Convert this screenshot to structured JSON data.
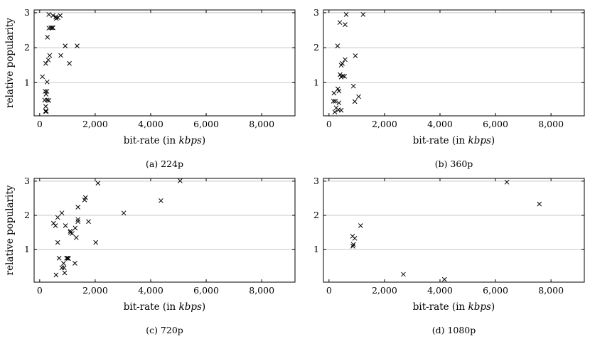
{
  "chart_data": [
    {
      "type": "scatter",
      "caption": "(a) 224p",
      "xlabel_prefix": "bit-rate (in ",
      "xlabel_unit": "kbps",
      "xlabel_suffix": ")",
      "ylabel": "relative popularity",
      "xlim": [
        -200,
        9200
      ],
      "ylim": [
        0.05,
        3.08
      ],
      "xticks": [
        0,
        2000,
        4000,
        6000,
        8000
      ],
      "xtick_labels": [
        "0",
        "2,000",
        "4,000",
        "6,000",
        "8,000"
      ],
      "yticks": [
        1,
        2,
        3
      ],
      "ytick_labels": [
        "1",
        "2",
        "3"
      ],
      "grid": "horizontal",
      "series": [
        {
          "marker": "x",
          "points": [
            [
              330,
              2.95
            ],
            [
              480,
              2.92
            ],
            [
              580,
              2.88
            ],
            [
              600,
              2.84
            ],
            [
              660,
              2.86
            ],
            [
              740,
              2.92
            ],
            [
              330,
              2.56
            ],
            [
              400,
              2.57
            ],
            [
              450,
              2.57
            ],
            [
              480,
              2.57
            ],
            [
              280,
              2.3
            ],
            [
              1350,
              2.05
            ],
            [
              920,
              2.05
            ],
            [
              360,
              1.78
            ],
            [
              760,
              1.78
            ],
            [
              310,
              1.65
            ],
            [
              220,
              1.55
            ],
            [
              1070,
              1.55
            ],
            [
              100,
              1.17
            ],
            [
              270,
              1.02
            ],
            [
              200,
              0.75
            ],
            [
              260,
              0.75
            ],
            [
              230,
              0.67
            ],
            [
              180,
              0.5
            ],
            [
              270,
              0.5
            ],
            [
              330,
              0.49
            ],
            [
              220,
              0.32
            ],
            [
              210,
              0.18
            ],
            [
              240,
              0.18
            ]
          ]
        }
      ]
    },
    {
      "type": "scatter",
      "caption": "(b) 360p",
      "xlabel_prefix": "bit-rate (in ",
      "xlabel_unit": "kbps",
      "xlabel_suffix": ")",
      "ylabel": "",
      "xlim": [
        -200,
        9200
      ],
      "ylim": [
        0.05,
        3.08
      ],
      "xticks": [
        0,
        2000,
        4000,
        6000,
        8000
      ],
      "xtick_labels": [
        "0",
        "2,000",
        "4,000",
        "6,000",
        "8,000"
      ],
      "yticks": [
        1,
        2,
        3
      ],
      "ytick_labels": [
        "1",
        "2",
        "3"
      ],
      "grid": "horizontal",
      "series": [
        {
          "marker": "x",
          "points": [
            [
              620,
              2.95
            ],
            [
              1230,
              2.95
            ],
            [
              390,
              2.72
            ],
            [
              580,
              2.66
            ],
            [
              310,
              2.05
            ],
            [
              950,
              1.77
            ],
            [
              580,
              1.66
            ],
            [
              480,
              1.55
            ],
            [
              440,
              1.5
            ],
            [
              400,
              1.23
            ],
            [
              500,
              1.19
            ],
            [
              560,
              1.18
            ],
            [
              440,
              1.16
            ],
            [
              880,
              0.9
            ],
            [
              320,
              0.82
            ],
            [
              180,
              0.7
            ],
            [
              360,
              0.76
            ],
            [
              1070,
              0.6
            ],
            [
              160,
              0.47
            ],
            [
              230,
              0.47
            ],
            [
              930,
              0.46
            ],
            [
              360,
              0.42
            ],
            [
              260,
              0.28
            ],
            [
              340,
              0.22
            ],
            [
              440,
              0.21
            ],
            [
              210,
              0.16
            ]
          ]
        }
      ]
    },
    {
      "type": "scatter",
      "caption": "(c) 720p",
      "xlabel_prefix": "bit-rate (in ",
      "xlabel_unit": "kbps",
      "xlabel_suffix": ")",
      "ylabel": "relative popularity",
      "xlim": [
        -200,
        9200
      ],
      "ylim": [
        0.05,
        3.08
      ],
      "xticks": [
        0,
        2000,
        4000,
        6000,
        8000
      ],
      "xtick_labels": [
        "0",
        "2,000",
        "4,000",
        "6,000",
        "8,000"
      ],
      "yticks": [
        1,
        2,
        3
      ],
      "ytick_labels": [
        "1",
        "2",
        "3"
      ],
      "grid": "horizontal",
      "series": [
        {
          "marker": "x",
          "points": [
            [
              5060,
              3.01
            ],
            [
              2100,
              2.94
            ],
            [
              1650,
              2.52
            ],
            [
              1620,
              2.45
            ],
            [
              4370,
              2.43
            ],
            [
              1380,
              2.24
            ],
            [
              3030,
              2.07
            ],
            [
              800,
              2.07
            ],
            [
              650,
              1.94
            ],
            [
              1380,
              1.88
            ],
            [
              1380,
              1.82
            ],
            [
              1760,
              1.82
            ],
            [
              500,
              1.77
            ],
            [
              570,
              1.7
            ],
            [
              930,
              1.7
            ],
            [
              1280,
              1.63
            ],
            [
              1100,
              1.54
            ],
            [
              1110,
              1.5
            ],
            [
              1170,
              1.47
            ],
            [
              1320,
              1.35
            ],
            [
              650,
              1.21
            ],
            [
              2020,
              1.21
            ],
            [
              700,
              0.75
            ],
            [
              970,
              0.75
            ],
            [
              1010,
              0.75
            ],
            [
              1040,
              0.74
            ],
            [
              860,
              0.6
            ],
            [
              1270,
              0.6
            ],
            [
              800,
              0.47
            ],
            [
              880,
              0.47
            ],
            [
              900,
              0.32
            ],
            [
              590,
              0.26
            ]
          ]
        }
      ]
    },
    {
      "type": "scatter",
      "caption": "(d) 1080p",
      "xlabel_prefix": "bit-rate (in ",
      "xlabel_unit": "kbps",
      "xlabel_suffix": ")",
      "ylabel": "",
      "xlim": [
        -200,
        9200
      ],
      "ylim": [
        0.05,
        3.08
      ],
      "xticks": [
        0,
        2000,
        4000,
        6000,
        8000
      ],
      "xtick_labels": [
        "0",
        "2,000",
        "4,000",
        "6,000",
        "8,000"
      ],
      "yticks": [
        1,
        2,
        3
      ],
      "ytick_labels": [
        "1",
        "2",
        "3"
      ],
      "grid": "horizontal",
      "series": [
        {
          "marker": "x",
          "points": [
            [
              6410,
              2.97
            ],
            [
              7580,
              2.33
            ],
            [
              1140,
              1.7
            ],
            [
              850,
              1.39
            ],
            [
              930,
              1.33
            ],
            [
              880,
              1.15
            ],
            [
              860,
              1.1
            ],
            [
              2680,
              0.28
            ],
            [
              4160,
              0.13
            ]
          ]
        }
      ]
    }
  ]
}
